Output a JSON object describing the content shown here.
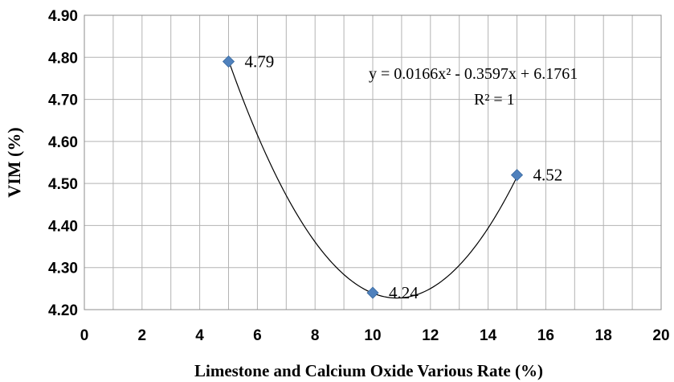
{
  "chart_data": {
    "type": "scatter",
    "title": "",
    "xlabel": "Limestone and Calcium Oxide Various Rate (%)",
    "ylabel": "VIM (%)",
    "xlim": [
      0,
      20
    ],
    "ylim": [
      4.2,
      4.9
    ],
    "x_ticks": [
      "0",
      "2",
      "4",
      "6",
      "8",
      "10",
      "12",
      "14",
      "16",
      "18",
      "20"
    ],
    "y_ticks": [
      "4.20",
      "4.30",
      "4.40",
      "4.50",
      "4.60",
      "4.70",
      "4.80",
      "4.90"
    ],
    "grid": true,
    "series": [
      {
        "x": [
          5,
          10,
          15
        ],
        "y": [
          4.79,
          4.24,
          4.52
        ],
        "labels": [
          "4.79",
          "4.24",
          "4.52"
        ],
        "marker": "diamond",
        "color": "#4f81bd"
      }
    ],
    "trendline": {
      "type": "polynomial",
      "order": 2,
      "coefficients": [
        0.0166,
        -0.3597,
        6.1761
      ],
      "color": "#000000"
    },
    "annotations": {
      "equation": "y = 0.0166x² - 0.3597x + 6.1761",
      "r_squared": "R² = 1"
    }
  }
}
